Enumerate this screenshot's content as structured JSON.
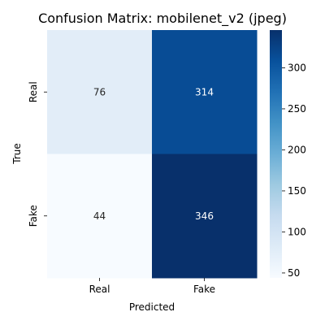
{
  "chart_data": {
    "type": "heatmap",
    "title": "Confusion Matrix: mobilenet_v2 (jpeg)",
    "xlabel": "Predicted",
    "ylabel": "True",
    "x_categories": [
      "Real",
      "Fake"
    ],
    "y_categories": [
      "Real",
      "Fake"
    ],
    "values": [
      [
        76,
        314
      ],
      [
        44,
        346
      ]
    ],
    "colormap": "Blues",
    "colorbar": {
      "range": [
        44,
        346
      ],
      "ticks": [
        50,
        100,
        150,
        200,
        250,
        300
      ]
    },
    "colors": {
      "lowest": "#f7fbff",
      "highest": "#08306b"
    }
  }
}
